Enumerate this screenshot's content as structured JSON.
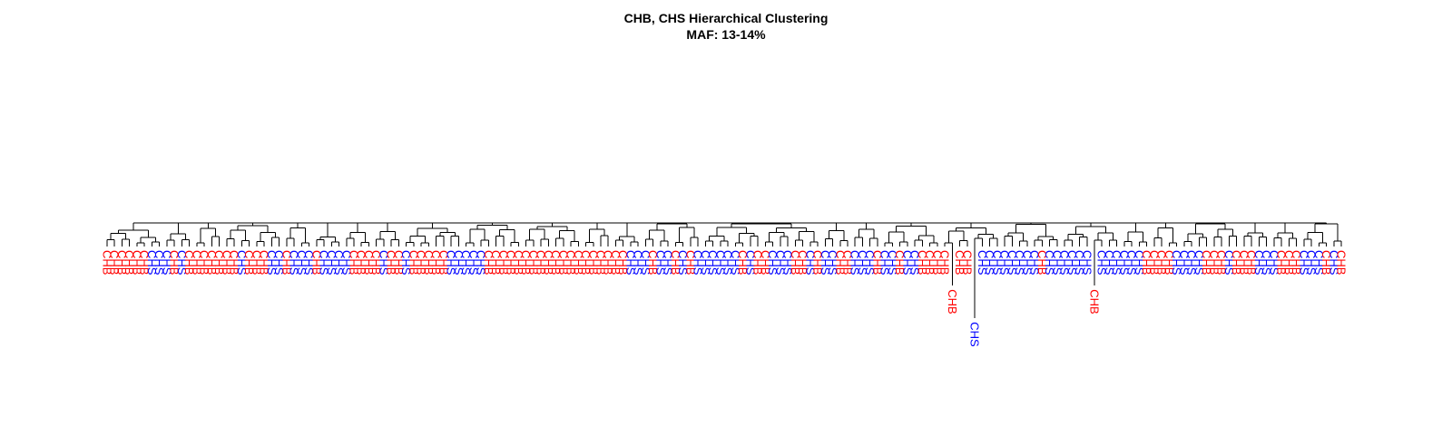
{
  "chart_data": {
    "type": "dendrogram",
    "title": "CHB, CHS Hierarchical Clustering",
    "subtitle": "MAF: 13-14%",
    "groups": [
      {
        "name": "CHB",
        "color": "#ff0000"
      },
      {
        "name": "CHS",
        "color": "#0000ff"
      }
    ],
    "leaves": [
      "CHB",
      "CHB",
      "CHB",
      "CHB",
      "CHB",
      "CHB",
      "CHS",
      "CHS",
      "CHS",
      "CHB",
      "CHS",
      "CHB",
      "CHB",
      "CHB",
      "CHB",
      "CHB",
      "CHB",
      "CHB",
      "CHS",
      "CHB",
      "CHB",
      "CHB",
      "CHS",
      "CHS",
      "CHB",
      "CHS",
      "CHS",
      "CHS",
      "CHB",
      "CHS",
      "CHS",
      "CHS",
      "CHS",
      "CHB",
      "CHB",
      "CHB",
      "CHB",
      "CHS",
      "CHB",
      "CHB",
      "CHS",
      "CHB",
      "CHB",
      "CHB",
      "CHB",
      "CHB",
      "CHS",
      "CHS",
      "CHS",
      "CHS",
      "CHS",
      "CHB",
      "CHB",
      "CHB",
      "CHB",
      "CHB",
      "CHB",
      "CHB",
      "CHB",
      "CHB",
      "CHB",
      "CHB",
      "CHB",
      "CHB",
      "CHB",
      "CHB",
      "CHB",
      "CHB",
      "CHB",
      "CHB",
      "CHS",
      "CHS",
      "CHS",
      "CHB",
      "CHS",
      "CHS",
      "CHB",
      "CHS",
      "CHB",
      "CHS",
      "CHS",
      "CHS",
      "CHS",
      "CHS",
      "CHS",
      "CHB",
      "CHS",
      "CHB",
      "CHB",
      "CHS",
      "CHS",
      "CHS",
      "CHB",
      "CHB",
      "CHS",
      "CHB",
      "CHS",
      "CHS",
      "CHB",
      "CHB",
      "CHS",
      "CHS",
      "CHS",
      "CHB",
      "CHS",
      "CHS",
      "CHB",
      "CHS",
      "CHS",
      "CHB",
      "CHB",
      "CHB",
      "CHB",
      "CHB",
      "CHB",
      "CHB",
      "CHS",
      "CHS",
      "CHS",
      "CHS",
      "CHS",
      "CHS",
      "CHS",
      "CHS",
      "CHS",
      "CHB",
      "CHS",
      "CHS",
      "CHS",
      "CHS",
      "CHS",
      "CHS",
      "CHB",
      "CHS",
      "CHS",
      "CHS",
      "CHS",
      "CHS",
      "CHS",
      "CHB",
      "CHB",
      "CHB",
      "CHB",
      "CHS",
      "CHS",
      "CHS",
      "CHS",
      "CHB",
      "CHB",
      "CHB",
      "CHS",
      "CHB",
      "CHB",
      "CHB",
      "CHS",
      "CHS",
      "CHS",
      "CHB",
      "CHB",
      "CHB",
      "CHS",
      "CHS",
      "CHS",
      "CHB",
      "CHS",
      "CHB"
    ],
    "long_leaves": [
      {
        "index": 113,
        "depth": 2.4
      },
      {
        "index": 116,
        "depth": 4.4
      },
      {
        "index": 132,
        "depth": 2.4
      }
    ]
  }
}
